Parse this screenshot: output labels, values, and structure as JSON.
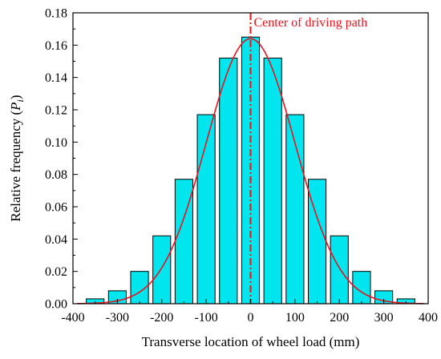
{
  "chart_data": {
    "type": "bar",
    "title": "",
    "xlabel": "Transverse location of wheel load (mm)",
    "ylabel_prefix": "Relative frequency (",
    "ylabel_symbol": "P",
    "ylabel_subscript": "i",
    "ylabel_suffix": ")",
    "xlim": [
      -400,
      400
    ],
    "ylim": [
      0,
      0.18
    ],
    "x_ticks": [
      -400,
      -300,
      -200,
      -100,
      0,
      100,
      200,
      300,
      400
    ],
    "y_ticks": [
      0.0,
      0.02,
      0.04,
      0.06,
      0.08,
      0.1,
      0.12,
      0.14,
      0.16,
      0.18
    ],
    "x": [
      -350,
      -300,
      -250,
      -200,
      -150,
      -100,
      -50,
      0,
      50,
      100,
      150,
      200,
      250,
      300,
      350
    ],
    "bar_width": 40,
    "values": [
      0.003,
      0.008,
      0.02,
      0.042,
      0.077,
      0.117,
      0.152,
      0.165,
      0.152,
      0.117,
      0.077,
      0.042,
      0.02,
      0.008,
      0.003
    ],
    "fit_curve": {
      "type": "normal",
      "mean": 0,
      "sd": 100,
      "peak": 0.164
    },
    "annotation": {
      "text": "Center of driving path",
      "x": 0
    },
    "grid": false,
    "colors": {
      "bar_fill": "#00e5ee",
      "bar_stroke": "#000000",
      "curve": "#e8141e",
      "center_line": "#e8141e",
      "annotation": "#e8141e"
    }
  }
}
